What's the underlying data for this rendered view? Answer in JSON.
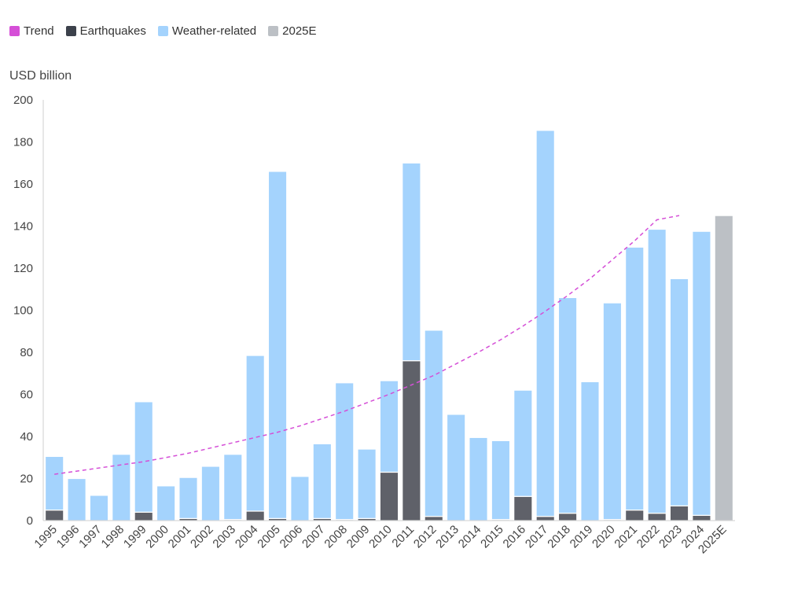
{
  "chart_data": {
    "type": "bar",
    "stacked": true,
    "ylabel": "USD billion",
    "ylim": [
      0,
      200
    ],
    "yticks": [
      0,
      20,
      40,
      60,
      80,
      100,
      120,
      140,
      160,
      180,
      200
    ],
    "categories": [
      "1995",
      "1996",
      "1997",
      "1998",
      "1999",
      "2000",
      "2001",
      "2002",
      "2003",
      "2004",
      "2005",
      "2006",
      "2007",
      "2008",
      "2009",
      "2010",
      "2011",
      "2012",
      "2013",
      "2014",
      "2015",
      "2016",
      "2017",
      "2018",
      "2019",
      "2020",
      "2021",
      "2022",
      "2023",
      "2024",
      "2025E"
    ],
    "series": [
      {
        "name": "Earthquakes",
        "color": "#5f6169",
        "values": [
          5,
          0,
          0,
          0,
          4,
          0,
          1,
          0,
          0.5,
          4.5,
          1,
          0,
          1,
          0.5,
          1,
          23,
          76,
          2,
          0,
          0,
          0.5,
          11.5,
          2,
          3.5,
          0,
          0.5,
          5,
          3.5,
          7,
          2.5,
          0
        ]
      },
      {
        "name": "Weather-related",
        "color": "#a4d3fd",
        "values": [
          25.5,
          20,
          12,
          31.5,
          52.5,
          16.5,
          19.5,
          25.8,
          31,
          74,
          165,
          21,
          35.5,
          65,
          33,
          43.5,
          94,
          88.5,
          50.5,
          39.5,
          37.5,
          50.5,
          183.5,
          102.5,
          66,
          103,
          125,
          135,
          108,
          135,
          0
        ]
      },
      {
        "name": "2025E",
        "color": "#bcc0c5",
        "values": [
          0,
          0,
          0,
          0,
          0,
          0,
          0,
          0,
          0,
          0,
          0,
          0,
          0,
          0,
          0,
          0,
          0,
          0,
          0,
          0,
          0,
          0,
          0,
          0,
          0,
          0,
          0,
          0,
          0,
          0,
          145
        ]
      }
    ],
    "trend": {
      "name": "Trend",
      "color": "#d54fd7",
      "style": "dashed",
      "values": [
        22,
        23.5,
        25,
        26.5,
        28,
        30,
        32,
        34.5,
        37,
        39.5,
        42,
        45,
        48.5,
        52,
        56,
        60,
        64.5,
        69,
        74.5,
        80,
        86,
        92.5,
        99.5,
        107,
        115,
        124,
        133,
        143,
        145
      ]
    }
  },
  "legend": [
    {
      "label": "Trend",
      "color": "#d54fd7"
    },
    {
      "label": "Earthquakes",
      "color": "#3c414b"
    },
    {
      "label": "Weather-related",
      "color": "#a4d3fd"
    },
    {
      "label": "2025E",
      "color": "#bcc0c5"
    }
  ]
}
